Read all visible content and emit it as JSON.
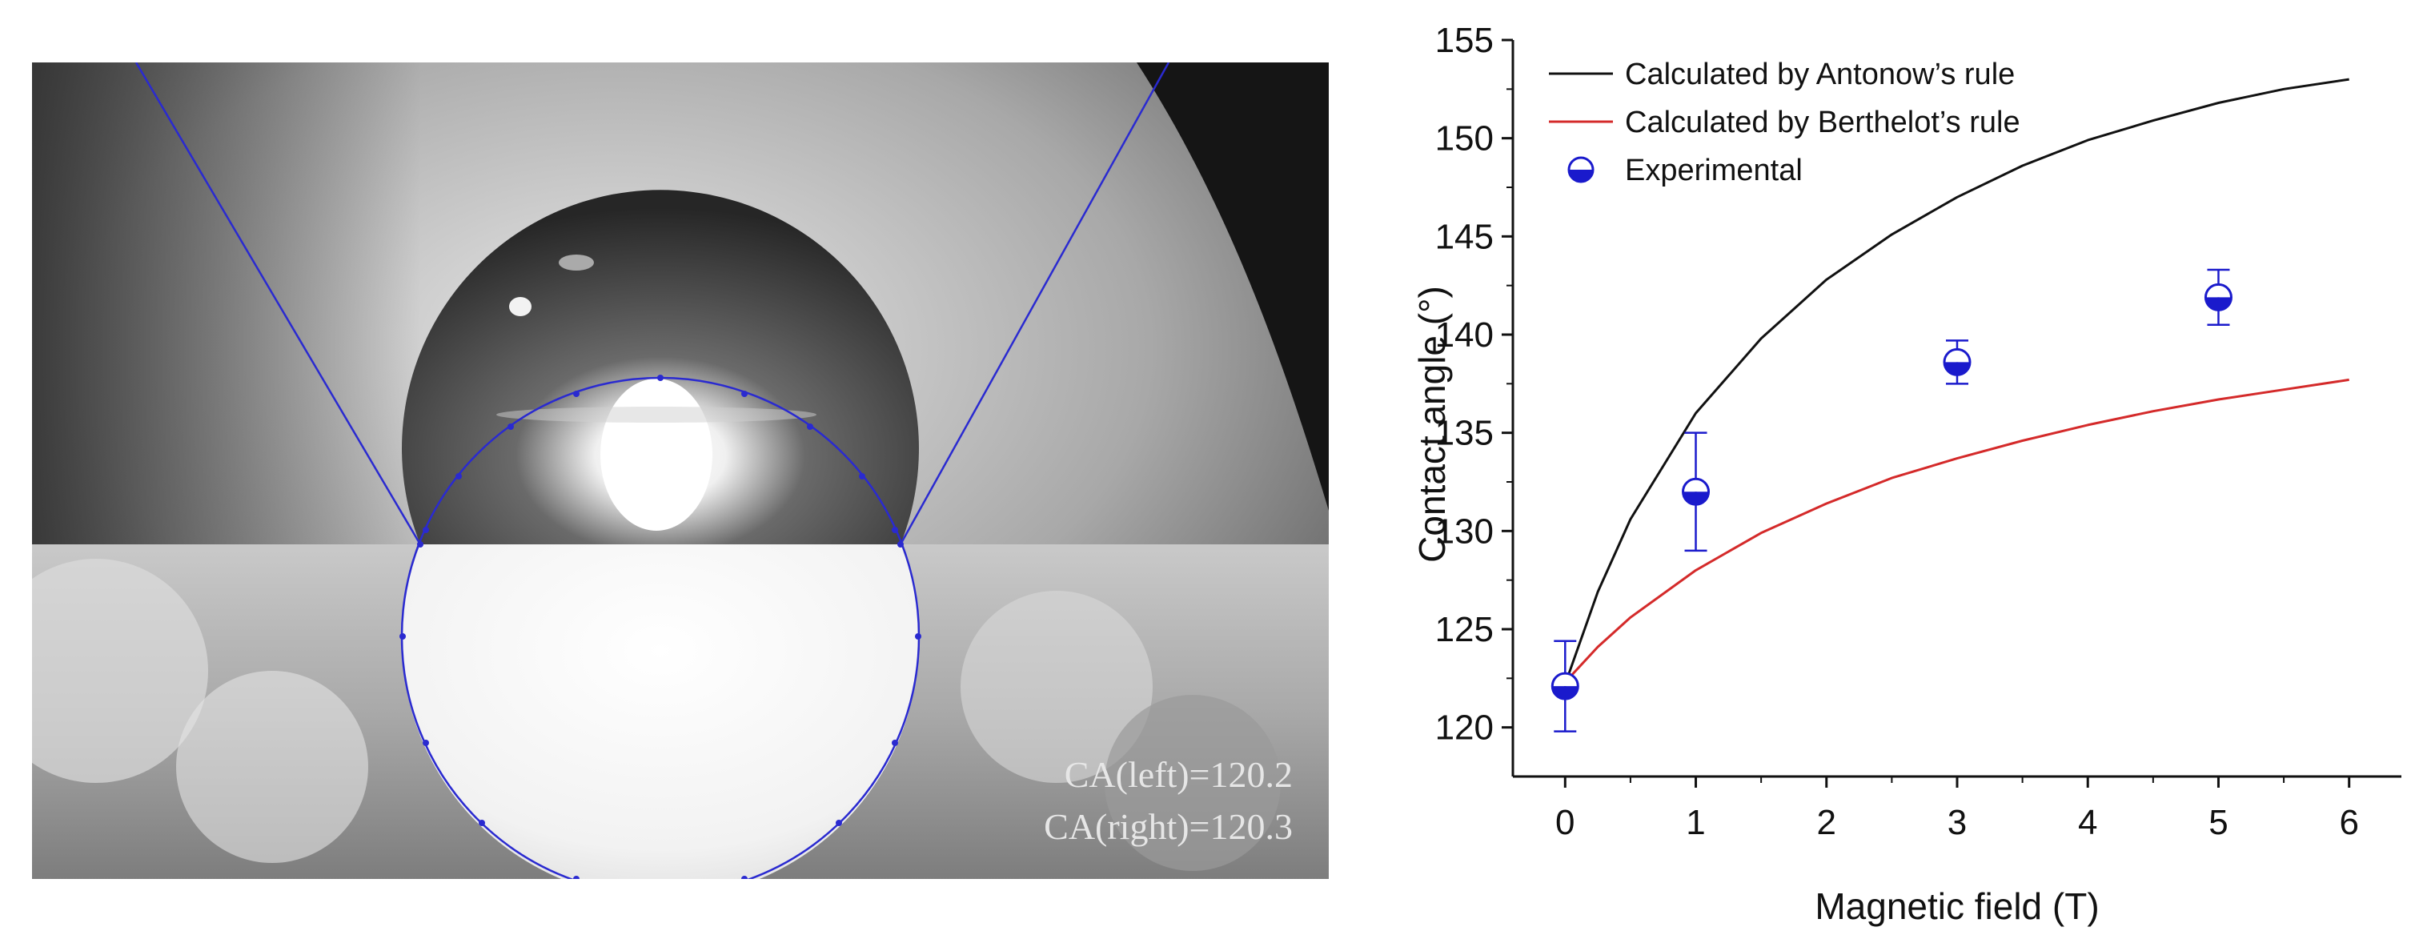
{
  "photo": {
    "ca_left_label": "CA(left)=120.2",
    "ca_right_label": "CA(right)=120.3",
    "fit_line_color": "#2a2ad0"
  },
  "chart_data": {
    "type": "line",
    "title": "",
    "xlabel": "Magnetic field (T)",
    "ylabel": "Contact angle (°)",
    "xlim": [
      -0.4,
      6.4
    ],
    "ylim": [
      117.5,
      155
    ],
    "xticks": [
      0,
      1,
      2,
      3,
      4,
      5,
      6
    ],
    "yticks": [
      120,
      125,
      130,
      135,
      140,
      145,
      150,
      155
    ],
    "grid": false,
    "legend_position": "top-left",
    "x": [
      0,
      0.25,
      0.5,
      1,
      1.5,
      2,
      2.5,
      3,
      3.5,
      4,
      4.5,
      5,
      5.5,
      6
    ],
    "series": [
      {
        "name": "Calculated by Antonow’s rule",
        "color": "#111111",
        "values": [
          122.2,
          126.9,
          130.6,
          136.0,
          139.8,
          142.8,
          145.1,
          147.0,
          148.6,
          149.9,
          150.9,
          151.8,
          152.5,
          153.0
        ]
      },
      {
        "name": "Calculated by Berthelot’s rule",
        "color": "#d42a2a",
        "values": [
          122.3,
          124.1,
          125.6,
          128.0,
          129.9,
          131.4,
          132.7,
          133.7,
          134.6,
          135.4,
          136.1,
          136.7,
          137.2,
          137.7
        ]
      }
    ],
    "points": {
      "name": "Experimental",
      "color": "#1a1acc",
      "x": [
        0,
        1,
        3,
        5
      ],
      "y": [
        122.1,
        132.0,
        138.6,
        141.9
      ],
      "err": [
        2.3,
        3.0,
        1.1,
        1.4
      ]
    }
  }
}
